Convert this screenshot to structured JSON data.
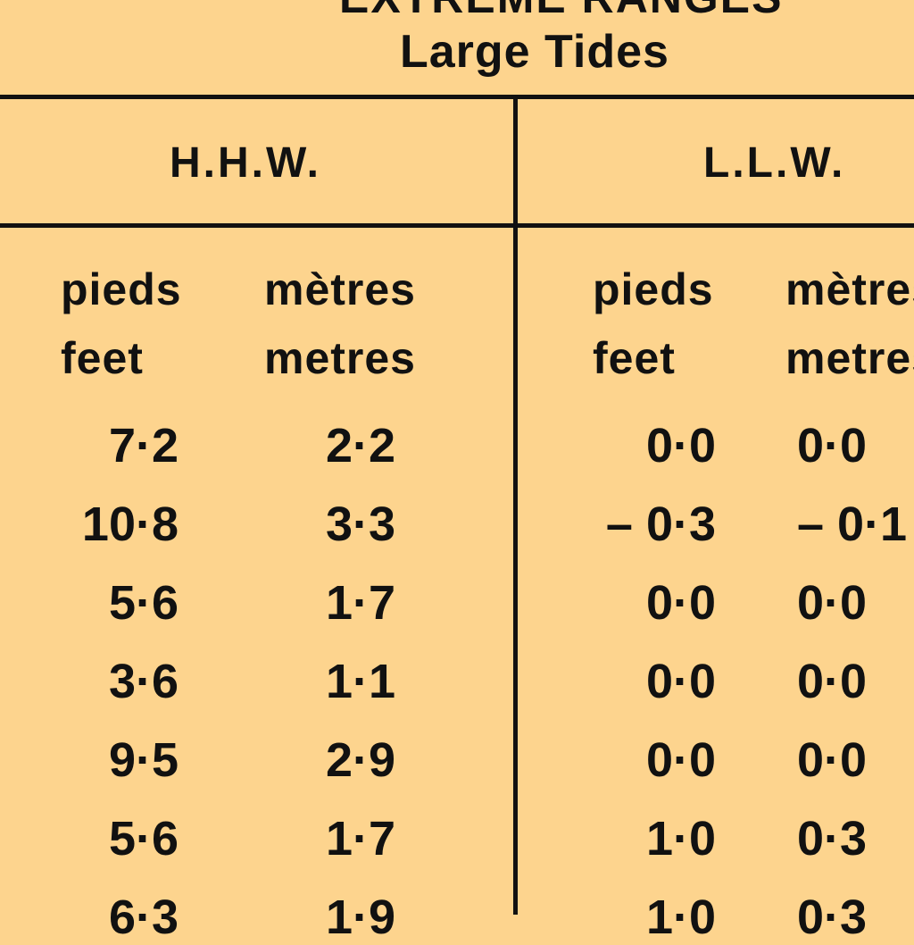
{
  "table": {
    "title_top": "EXTREME RANGES",
    "title": "Large Tides",
    "groups": [
      "H.H.W.",
      "L.L.W."
    ],
    "units": {
      "french": "pieds",
      "english": "feet",
      "french_m": "mètres",
      "english_m": "metres"
    },
    "rows": [
      {
        "hhw_ft": "7·2",
        "hhw_m": "2·2",
        "llw_ft": "0·0",
        "llw_m": "0·0"
      },
      {
        "hhw_ft": "10·8",
        "hhw_m": "3·3",
        "llw_ft": "– 0·3",
        "llw_m": "– 0·1"
      },
      {
        "hhw_ft": "5·6",
        "hhw_m": "1·7",
        "llw_ft": "0·0",
        "llw_m": "0·0"
      },
      {
        "hhw_ft": "3·6",
        "hhw_m": "1·1",
        "llw_ft": "0·0",
        "llw_m": "0·0"
      },
      {
        "hhw_ft": "9·5",
        "hhw_m": "2·9",
        "llw_ft": "0·0",
        "llw_m": "0·0"
      },
      {
        "hhw_ft": "5·6",
        "hhw_m": "1·7",
        "llw_ft": "1·0",
        "llw_m": "0·3"
      },
      {
        "hhw_ft": "6·3",
        "hhw_m": "1·9",
        "llw_ft": "1·0",
        "llw_m": "0·3"
      }
    ]
  }
}
